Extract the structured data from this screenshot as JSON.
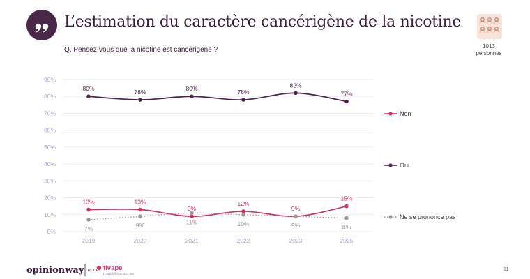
{
  "header": {
    "title": "L’estimation du caractère cancérigène de la nicotine",
    "question": "Q. Pensez-vous que la nicotine est cancérigène ?",
    "sample_count": "1013",
    "sample_unit": "personnes"
  },
  "footer": {
    "brand": "opinionway",
    "pour": "POUR",
    "client": "fivape",
    "client_tagline": "FILIÈRE FRANÇAISE DE LA VAPE",
    "page_number": "11"
  },
  "colors": {
    "brand": "#3e1f3c",
    "non": "#c9355f",
    "oui": "#4a2848",
    "nsp": "#9a9a9a",
    "axis_text": "#a8a8c8",
    "grid": "#e9e9e9"
  },
  "chart_data": {
    "type": "line",
    "categories": [
      "2019",
      "2020",
      "2021",
      "2022",
      "2023",
      "2025"
    ],
    "ylim": [
      0,
      90
    ],
    "yticks": [
      0,
      10,
      20,
      30,
      40,
      50,
      60,
      70,
      80,
      90
    ],
    "ytick_suffix": "%",
    "grid": true,
    "legend_position": "right",
    "series": [
      {
        "name": "Oui",
        "values": [
          80,
          78,
          80,
          78,
          82,
          77
        ],
        "labels": [
          "80%",
          "78%",
          "80%",
          "78%",
          "82%",
          "77%"
        ],
        "style": "solid",
        "label_pos": "above"
      },
      {
        "name": "Non",
        "values": [
          13,
          13,
          9,
          12,
          9,
          15
        ],
        "labels": [
          "13%",
          "13%",
          "9%",
          "12%",
          "9%",
          "15%"
        ],
        "style": "solid",
        "label_pos": "above"
      },
      {
        "name": "Ne se prononce pas",
        "values": [
          7,
          9,
          11,
          10,
          9,
          8
        ],
        "labels": [
          "7%",
          "9%",
          "11%",
          "10%",
          "9%",
          "8%"
        ],
        "style": "dotted",
        "label_pos": "below"
      }
    ],
    "legend": [
      "Non",
      "Oui",
      "Ne se prononce pas"
    ]
  }
}
